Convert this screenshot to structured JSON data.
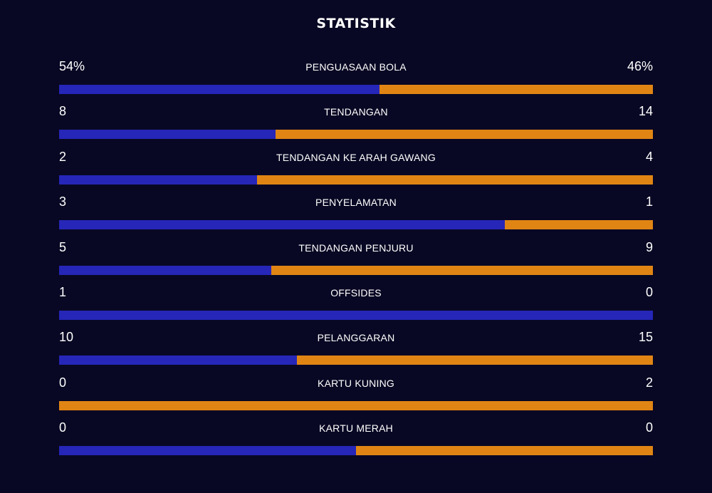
{
  "header": {
    "title": "STATISTIK"
  },
  "colors": {
    "background": "#080824",
    "home": "#2626b8",
    "away": "#e08514"
  },
  "stats": [
    {
      "label": "PENGUASAAN BOLA",
      "home": "54%",
      "away": "46%",
      "home_share": 0.54
    },
    {
      "label": "TENDANGAN",
      "home": "8",
      "away": "14",
      "home_share": 0.364
    },
    {
      "label": "TENDANGAN KE ARAH GAWANG",
      "home": "2",
      "away": "4",
      "home_share": 0.333
    },
    {
      "label": "PENYELAMATAN",
      "home": "3",
      "away": "1",
      "home_share": 0.75
    },
    {
      "label": "TENDANGAN PENJURU",
      "home": "5",
      "away": "9",
      "home_share": 0.357
    },
    {
      "label": "OFFSIDES",
      "home": "1",
      "away": "0",
      "home_share": 1.0
    },
    {
      "label": "PELANGGARAN",
      "home": "10",
      "away": "15",
      "home_share": 0.4
    },
    {
      "label": "KARTU KUNING",
      "home": "0",
      "away": "2",
      "home_share": 0.0
    },
    {
      "label": "KARTU MERAH",
      "home": "0",
      "away": "0",
      "home_share": 0.5
    }
  ]
}
